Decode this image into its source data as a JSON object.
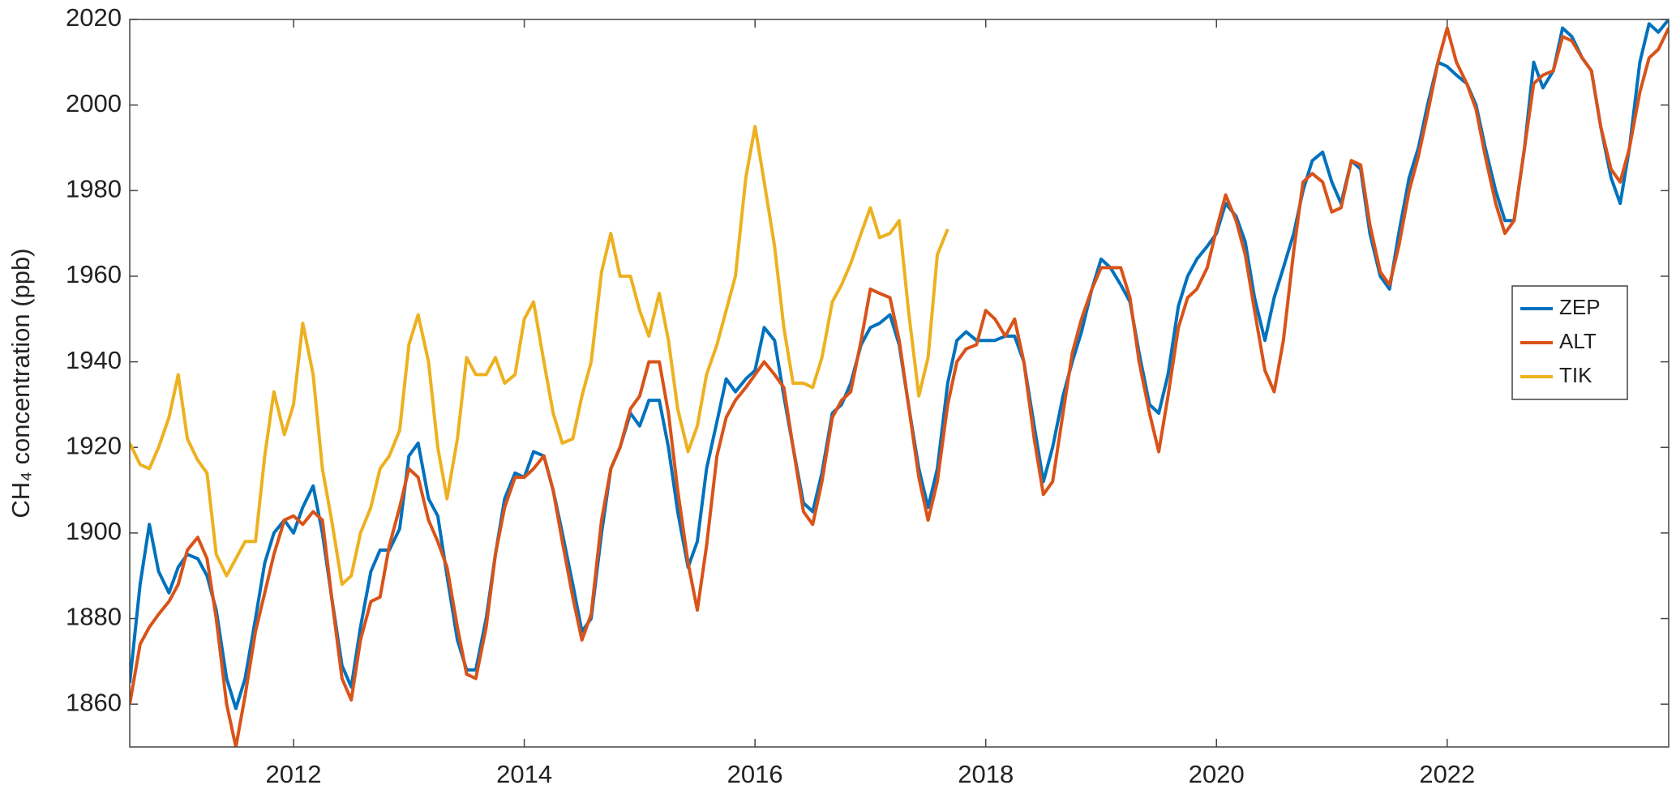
{
  "chart_data": {
    "type": "line",
    "y_label": "CH₄ concentration (ppb)",
    "x": [
      2010.58,
      2010.67,
      2010.75,
      2010.83,
      2010.92,
      2011.0,
      2011.08,
      2011.17,
      2011.25,
      2011.33,
      2011.42,
      2011.5,
      2011.58,
      2011.67,
      2011.75,
      2011.83,
      2011.92,
      2012.0,
      2012.08,
      2012.17,
      2012.25,
      2012.33,
      2012.42,
      2012.5,
      2012.58,
      2012.67,
      2012.75,
      2012.83,
      2012.92,
      2013.0,
      2013.08,
      2013.17,
      2013.25,
      2013.33,
      2013.42,
      2013.5,
      2013.58,
      2013.67,
      2013.75,
      2013.83,
      2013.92,
      2014.0,
      2014.08,
      2014.17,
      2014.25,
      2014.33,
      2014.42,
      2014.5,
      2014.58,
      2014.67,
      2014.75,
      2014.83,
      2014.92,
      2015.0,
      2015.08,
      2015.17,
      2015.25,
      2015.33,
      2015.42,
      2015.5,
      2015.58,
      2015.67,
      2015.75,
      2015.83,
      2015.92,
      2016.0,
      2016.08,
      2016.17,
      2016.25,
      2016.33,
      2016.42,
      2016.5,
      2016.58,
      2016.67,
      2016.75,
      2016.83,
      2016.92,
      2017.0,
      2017.08,
      2017.17,
      2017.25,
      2017.33,
      2017.42,
      2017.5,
      2017.58,
      2017.67,
      2017.75,
      2017.83,
      2017.92,
      2018.0,
      2018.08,
      2018.17,
      2018.25,
      2018.33,
      2018.42,
      2018.5,
      2018.58,
      2018.67,
      2018.75,
      2018.83,
      2018.92,
      2019.0,
      2019.08,
      2019.17,
      2019.25,
      2019.33,
      2019.42,
      2019.5,
      2019.58,
      2019.67,
      2019.75,
      2019.83,
      2019.92,
      2020.0,
      2020.08,
      2020.17,
      2020.25,
      2020.33,
      2020.42,
      2020.5,
      2020.58,
      2020.67,
      2020.75,
      2020.83,
      2020.92,
      2021.0,
      2021.08,
      2021.17,
      2021.25,
      2021.33,
      2021.42,
      2021.5,
      2021.58,
      2021.67,
      2021.75,
      2021.83,
      2021.92,
      2022.0,
      2022.08,
      2022.17,
      2022.25,
      2022.33,
      2022.42,
      2022.5,
      2022.58,
      2022.67,
      2022.75,
      2022.83,
      2022.92,
      2023.0,
      2023.08,
      2023.17,
      2023.25,
      2023.33,
      2023.42,
      2023.5,
      2023.58,
      2023.67,
      2023.75,
      2023.83,
      2023.92
    ],
    "series": [
      {
        "name": "ZEP",
        "color": "#0072BD",
        "values": [
          1865,
          1888,
          1902,
          1891,
          1886,
          1892,
          1895,
          1894,
          1890,
          1882,
          1866,
          1859,
          1866,
          1880,
          1893,
          1900,
          1903,
          1900,
          1906,
          1911,
          1900,
          1885,
          1869,
          1864,
          1878,
          1891,
          1896,
          1896,
          1901,
          1918,
          1921,
          1908,
          1904,
          1890,
          1875,
          1868,
          1868,
          1880,
          1895,
          1908,
          1914,
          1913,
          1919,
          1918,
          1910,
          1900,
          1888,
          1877,
          1880,
          1900,
          1915,
          1920,
          1928,
          1925,
          1931,
          1931,
          1920,
          1905,
          1892,
          1898,
          1915,
          1926,
          1936,
          1933,
          1936,
          1938,
          1948,
          1945,
          1932,
          1920,
          1907,
          1905,
          1914,
          1928,
          1930,
          1935,
          1944,
          1948,
          1949,
          1951,
          1944,
          1930,
          1915,
          1906,
          1915,
          1935,
          1945,
          1947,
          1945,
          1945,
          1945,
          1946,
          1946,
          1940,
          1925,
          1912,
          1920,
          1932,
          1940,
          1947,
          1957,
          1964,
          1962,
          1958,
          1954,
          1942,
          1930,
          1928,
          1937,
          1953,
          1960,
          1964,
          1967,
          1970,
          1977,
          1974,
          1968,
          1955,
          1945,
          1955,
          1962,
          1970,
          1980,
          1987,
          1989,
          1982,
          1977,
          1987,
          1985,
          1970,
          1960,
          1957,
          1970,
          1983,
          1990,
          2000,
          2010,
          2009,
          2007,
          2005,
          2000,
          1990,
          1980,
          1973,
          1973,
          1990,
          2010,
          2004,
          2008,
          2018,
          2016,
          2011,
          2008,
          1995,
          1983,
          1977,
          1990,
          2010,
          2019,
          2017,
          2020
        ]
      },
      {
        "name": "ALT",
        "color": "#D95319",
        "values": [
          1860,
          1874,
          1878,
          1881,
          1884,
          1888,
          1896,
          1899,
          1894,
          1880,
          1860,
          1850,
          1862,
          1877,
          1886,
          1895,
          1903,
          1904,
          1902,
          1905,
          1903,
          1885,
          1866,
          1861,
          1875,
          1884,
          1885,
          1897,
          1906,
          1915,
          1913,
          1903,
          1898,
          1892,
          1878,
          1867,
          1866,
          1878,
          1895,
          1906,
          1913,
          1913,
          1915,
          1918,
          1910,
          1898,
          1885,
          1875,
          1881,
          1903,
          1915,
          1920,
          1929,
          1932,
          1940,
          1940,
          1928,
          1910,
          1893,
          1882,
          1897,
          1918,
          1927,
          1931,
          1934,
          1937,
          1940,
          1937,
          1934,
          1920,
          1905,
          1902,
          1912,
          1927,
          1931,
          1933,
          1945,
          1957,
          1956,
          1955,
          1945,
          1930,
          1913,
          1903,
          1912,
          1930,
          1940,
          1943,
          1944,
          1952,
          1950,
          1946,
          1950,
          1940,
          1922,
          1909,
          1912,
          1928,
          1942,
          1950,
          1957,
          1962,
          1962,
          1962,
          1955,
          1940,
          1928,
          1919,
          1932,
          1948,
          1955,
          1957,
          1962,
          1971,
          1979,
          1973,
          1965,
          1952,
          1938,
          1933,
          1945,
          1966,
          1982,
          1984,
          1982,
          1975,
          1976,
          1987,
          1986,
          1972,
          1961,
          1958,
          1967,
          1980,
          1988,
          1998,
          2010,
          2018,
          2010,
          2005,
          1999,
          1988,
          1977,
          1970,
          1973,
          1990,
          2005,
          2007,
          2008,
          2016,
          2015,
          2011,
          2008,
          1995,
          1985,
          1982,
          1990,
          2003,
          2011,
          2013,
          2018
        ]
      },
      {
        "name": "TIK",
        "color": "#EDB120",
        "values": [
          1921,
          1916,
          1915,
          1920,
          1927,
          1937,
          1922,
          1917,
          1914,
          1895,
          1890,
          1894,
          1898,
          1898,
          1918,
          1933,
          1923,
          1930,
          1949,
          1937,
          1915,
          1903,
          1888,
          1890,
          1900,
          1906,
          1915,
          1918,
          1924,
          1944,
          1951,
          1940,
          1920,
          1908,
          1922,
          1941,
          1937,
          1937,
          1941,
          1935,
          1937,
          1950,
          1954,
          1940,
          1928,
          1921,
          1922,
          1932,
          1940,
          1961,
          1970,
          1960,
          1960,
          1952,
          1946,
          1956,
          1945,
          1929,
          1919,
          1925,
          1937,
          1944,
          1952,
          1960,
          1983,
          1995,
          1982,
          1967,
          1948,
          1935,
          1935,
          1934,
          1941,
          1954,
          1958,
          1963,
          1970,
          1976,
          1969,
          1970,
          1973,
          1952,
          1932,
          1941,
          1965,
          1971,
          null,
          null,
          null,
          null,
          null,
          null,
          null,
          null,
          null,
          null,
          null,
          null,
          null,
          null,
          null,
          null,
          null,
          null,
          null,
          null,
          null,
          null,
          null,
          null,
          null,
          null,
          null,
          null,
          null,
          null,
          null,
          null,
          null,
          null,
          null,
          null,
          null,
          null,
          null,
          null,
          null,
          null,
          null,
          null,
          null,
          null,
          null,
          null,
          null,
          null,
          null,
          null,
          null,
          null,
          null,
          null,
          null,
          null,
          null,
          null,
          null,
          null,
          null,
          null,
          null,
          null,
          null,
          null,
          null,
          null,
          null,
          null,
          null,
          null,
          null
        ]
      }
    ],
    "xlim": [
      2010.58,
      2023.92
    ],
    "xticks": [
      2012,
      2014,
      2016,
      2018,
      2020,
      2022
    ],
    "ylim": [
      1850,
      2020
    ],
    "yticks": [
      1860,
      1880,
      1900,
      1920,
      1940,
      1960,
      1980,
      2000,
      2020
    ],
    "grid": false,
    "legend": "right"
  }
}
